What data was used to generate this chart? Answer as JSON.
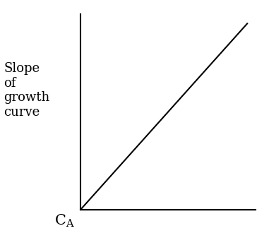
{
  "title": "",
  "ylabel_text": "Slope\nof\ngrowth\ncurve",
  "line_x": [
    0,
    1
  ],
  "line_y": [
    0,
    1
  ],
  "line_color": "#000000",
  "line_width": 1.5,
  "xlim": [
    0,
    1.05
  ],
  "ylim": [
    0,
    1.05
  ],
  "background_color": "#ffffff",
  "xlabel_fontsize": 15,
  "ylabel_fontsize": 13,
  "fig_width": 3.81,
  "fig_height": 3.37
}
